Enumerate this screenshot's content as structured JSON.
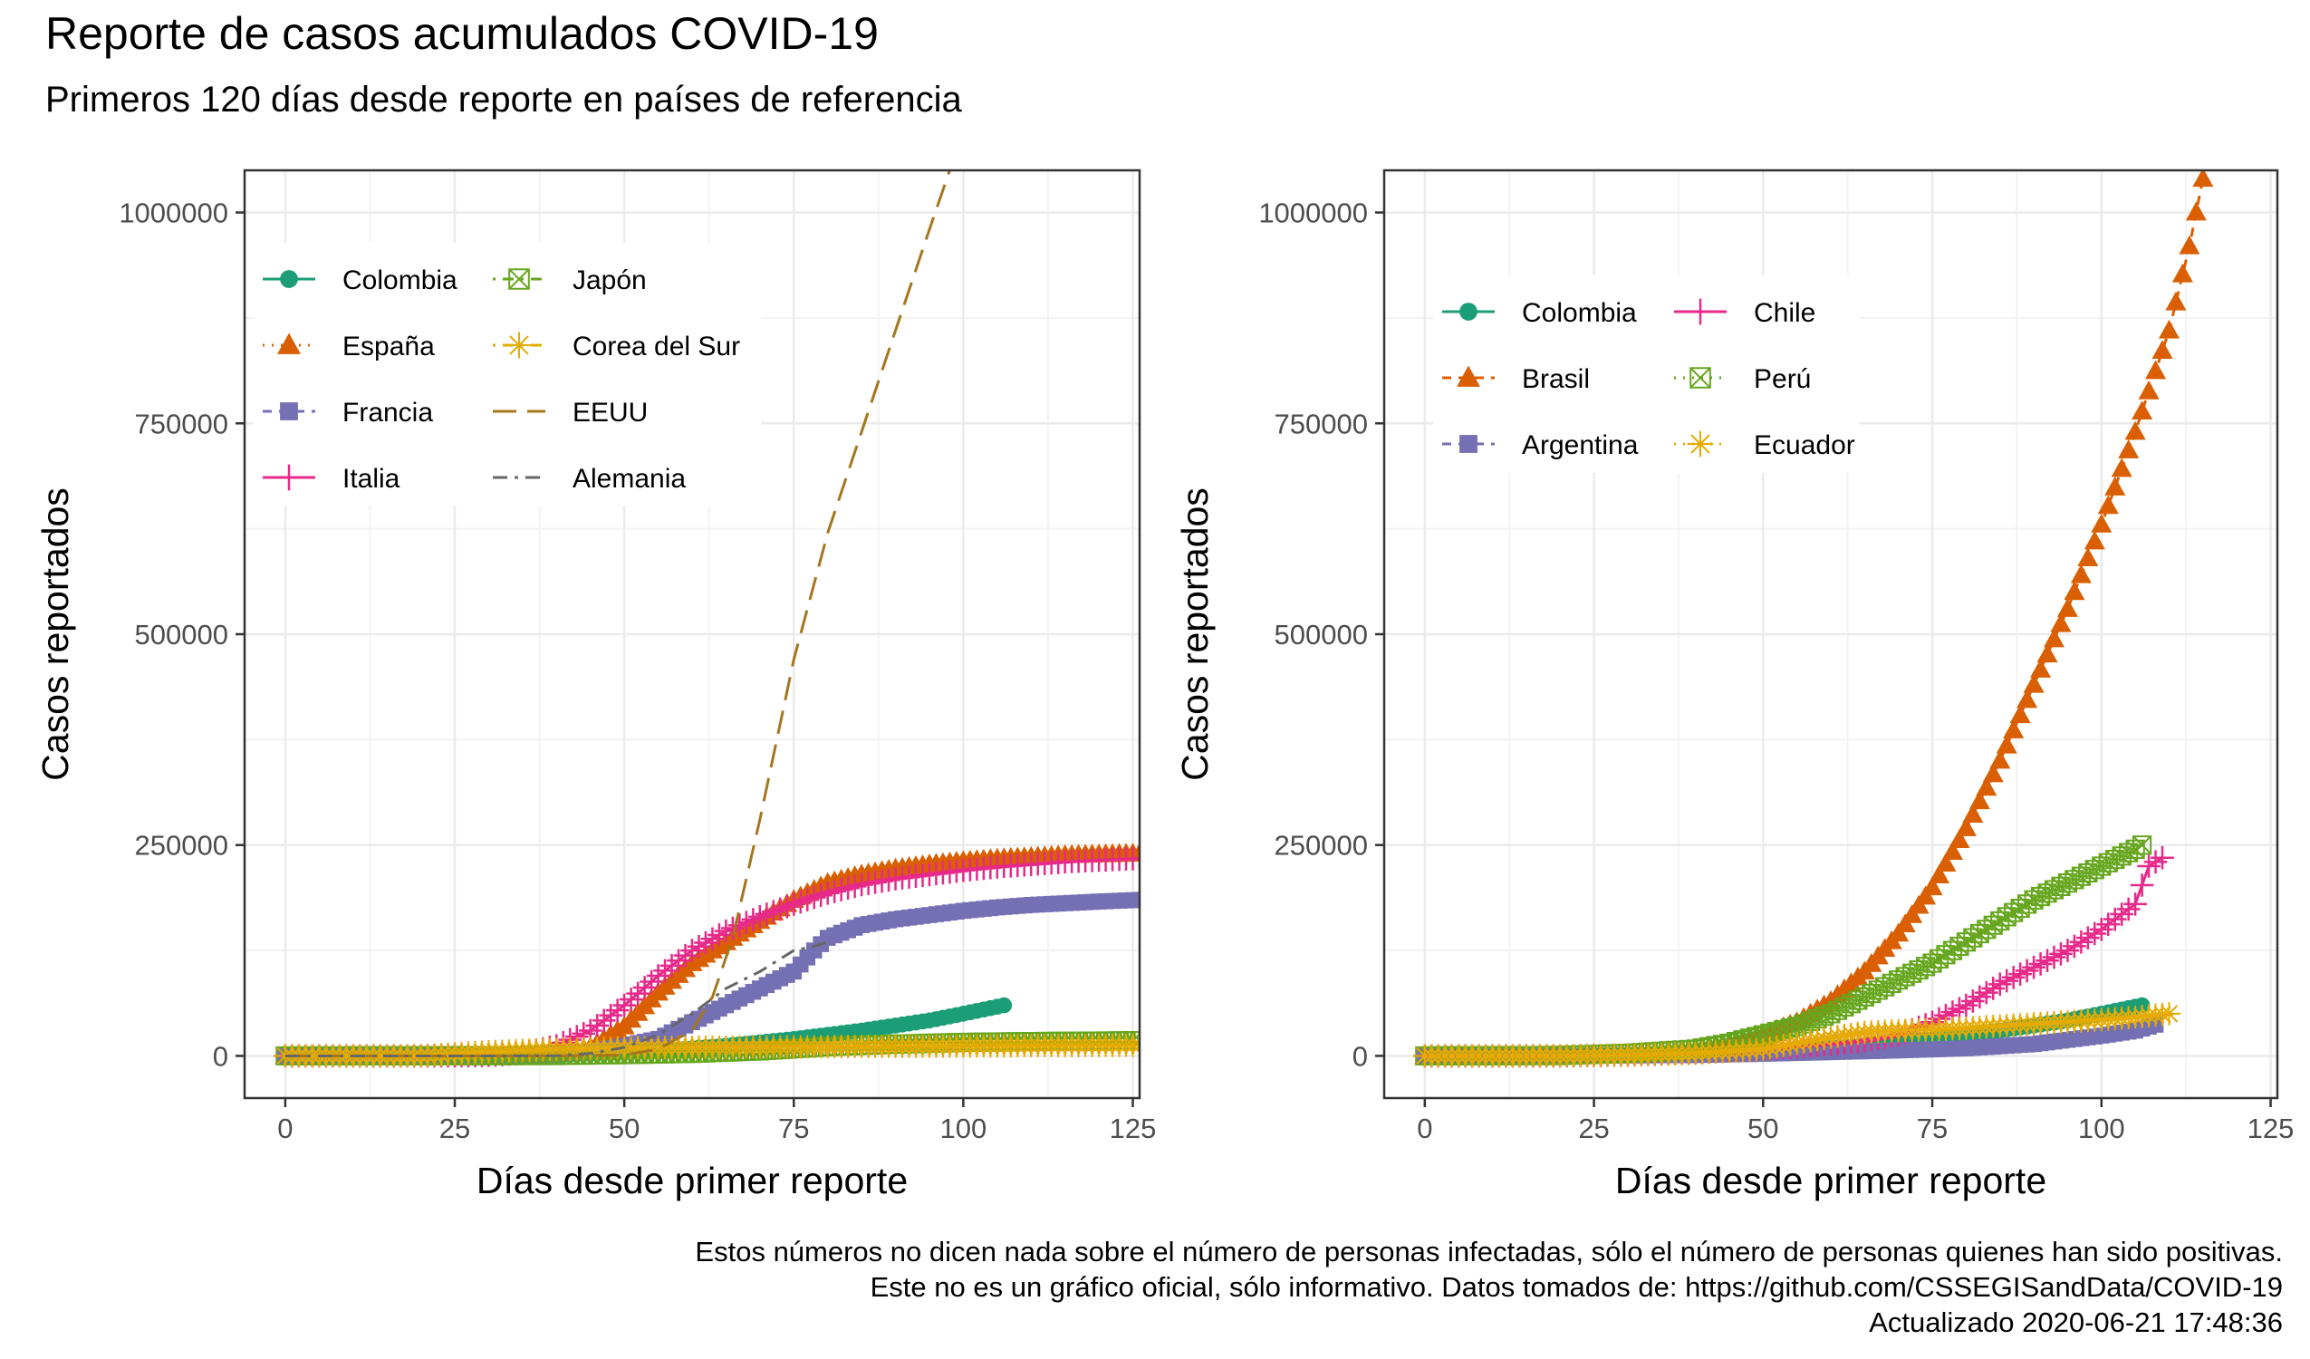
{
  "title": "Reporte de casos acumulados COVID-19",
  "subtitle": "Primeros 120 días desde reporte en países de referencia",
  "caption": [
    "Estos números no dicen nada sobre el número de personas infectadas, sólo el número de personas quienes han sido positivas.",
    "Este no es un gráfico oficial, sólo informativo. Datos tomados de: https://github.com/CSSEGISandData/COVID-19",
    "Actualizado 2020-06-21 17:48:36"
  ],
  "chart_data": [
    {
      "type": "line",
      "xlabel": "Días desde primer reporte",
      "ylabel": "Casos reportados",
      "xlim": [
        -6,
        126
      ],
      "ylim": [
        -50000,
        1050000
      ],
      "xticks": [
        0,
        25,
        50,
        75,
        100,
        125
      ],
      "yticks": [
        0,
        250000,
        500000,
        750000,
        1000000
      ],
      "grid": true,
      "legend_position": "top-left",
      "series": [
        {
          "name": "Colombia",
          "color": "#1B9E77",
          "marker": "circle",
          "dash": "solid",
          "x": [
            0,
            10,
            20,
            30,
            40,
            50,
            55,
            60,
            65,
            70,
            75,
            80,
            85,
            90,
            95,
            100,
            103,
            106
          ],
          "y": [
            0,
            0,
            100,
            500,
            1500,
            4000,
            6000,
            9000,
            12000,
            16000,
            20000,
            25000,
            30000,
            36000,
            42000,
            50000,
            55000,
            60000
          ]
        },
        {
          "name": "España",
          "color": "#D95F02",
          "marker": "triangle",
          "dash": "dotted",
          "x": [
            0,
            10,
            20,
            30,
            35,
            40,
            45,
            50,
            55,
            60,
            65,
            70,
            75,
            80,
            85,
            90,
            95,
            100,
            105,
            110,
            115,
            120,
            126
          ],
          "y": [
            0,
            0,
            0,
            0,
            500,
            2000,
            10000,
            35000,
            75000,
            110000,
            135000,
            160000,
            185000,
            205000,
            215000,
            222000,
            227000,
            231000,
            234000,
            236000,
            238000,
            239000,
            240000
          ]
        },
        {
          "name": "Francia",
          "color": "#7570B3",
          "marker": "square",
          "dash": "dashed",
          "x": [
            0,
            10,
            20,
            30,
            35,
            40,
            45,
            50,
            55,
            60,
            65,
            70,
            75,
            78,
            80,
            85,
            90,
            95,
            100,
            105,
            110,
            115,
            120,
            126
          ],
          "y": [
            0,
            0,
            0,
            0,
            200,
            1000,
            5000,
            12000,
            20000,
            40000,
            60000,
            80000,
            100000,
            125000,
            140000,
            155000,
            162000,
            167000,
            172000,
            176000,
            179000,
            181000,
            183000,
            185000
          ]
        },
        {
          "name": "Italia",
          "color": "#E7298A",
          "marker": "plus",
          "dash": "solid",
          "x": [
            0,
            10,
            20,
            25,
            30,
            35,
            40,
            45,
            50,
            55,
            60,
            65,
            70,
            75,
            80,
            85,
            90,
            95,
            100,
            105,
            110,
            115,
            120,
            126
          ],
          "y": [
            0,
            0,
            0,
            0,
            500,
            3000,
            12000,
            30000,
            60000,
            95000,
            125000,
            148000,
            165000,
            180000,
            193000,
            203000,
            210000,
            215000,
            220000,
            224000,
            227000,
            230000,
            232000,
            234000
          ]
        },
        {
          "name": "Japón",
          "color": "#66A61E",
          "marker": "square-x",
          "dash": "dotdash",
          "x": [
            0,
            20,
            40,
            50,
            60,
            70,
            80,
            90,
            100,
            110,
            126
          ],
          "y": [
            0,
            100,
            500,
            1500,
            3000,
            6000,
            11000,
            14000,
            16000,
            17000,
            18000
          ]
        },
        {
          "name": "Corea del Sur",
          "color": "#E6AB02",
          "marker": "asterisk",
          "dash": "dotdash",
          "x": [
            0,
            20,
            30,
            40,
            50,
            60,
            70,
            80,
            90,
            100,
            110,
            126
          ],
          "y": [
            0,
            30,
            5000,
            8000,
            9500,
            10300,
            10600,
            10900,
            11300,
            11700,
            12100,
            12500
          ]
        },
        {
          "name": "EEUU",
          "color": "#A6761D",
          "marker": "none",
          "dash": "longdash",
          "x": [
            0,
            20,
            40,
            50,
            55,
            60,
            63,
            66,
            70,
            75,
            80,
            85,
            90,
            95,
            98
          ],
          "y": [
            0,
            0,
            100,
            1000,
            8000,
            30000,
            70000,
            140000,
            280000,
            470000,
            620000,
            740000,
            860000,
            980000,
            1050000
          ]
        },
        {
          "name": "Alemania",
          "color": "#666666",
          "marker": "none",
          "dash": "dashdot",
          "x": [
            0,
            20,
            30,
            40,
            45,
            50,
            55,
            60,
            65,
            70,
            75,
            78,
            80
          ],
          "y": [
            0,
            0,
            0,
            300,
            3000,
            10000,
            25000,
            50000,
            80000,
            100000,
            125000,
            130000,
            135000
          ]
        }
      ]
    },
    {
      "type": "line",
      "xlabel": "Días desde primer reporte",
      "ylabel": "Casos reportados",
      "xlim": [
        -6,
        126
      ],
      "ylim": [
        -50000,
        1050000
      ],
      "xticks": [
        0,
        25,
        50,
        75,
        100,
        125
      ],
      "yticks": [
        0,
        250000,
        500000,
        750000,
        1000000
      ],
      "grid": true,
      "legend_position": "top-left",
      "series": [
        {
          "name": "Colombia",
          "color": "#1B9E77",
          "marker": "circle",
          "dash": "solid",
          "x": [
            0,
            10,
            20,
            30,
            40,
            50,
            55,
            60,
            65,
            70,
            75,
            80,
            85,
            90,
            95,
            100,
            103,
            106
          ],
          "y": [
            0,
            0,
            100,
            500,
            1500,
            4000,
            6000,
            9000,
            12000,
            16000,
            20000,
            25000,
            30000,
            36000,
            42000,
            50000,
            55000,
            60000
          ]
        },
        {
          "name": "Brasil",
          "color": "#D95F02",
          "marker": "triangle",
          "dash": "dashed",
          "x": [
            0,
            10,
            20,
            30,
            40,
            45,
            50,
            55,
            60,
            65,
            70,
            75,
            80,
            85,
            90,
            95,
            100,
            105,
            110,
            113,
            115
          ],
          "y": [
            0,
            0,
            0,
            2000,
            8000,
            14000,
            25000,
            40000,
            65000,
            100000,
            145000,
            200000,
            270000,
            350000,
            440000,
            530000,
            630000,
            740000,
            860000,
            960000,
            1040000
          ]
        },
        {
          "name": "Argentina",
          "color": "#7570B3",
          "marker": "square",
          "dash": "dashed",
          "x": [
            0,
            20,
            40,
            50,
            60,
            70,
            80,
            90,
            95,
            100,
            105,
            108
          ],
          "y": [
            0,
            0,
            1000,
            2500,
            4500,
            6500,
            9000,
            14000,
            19000,
            24000,
            30000,
            37000
          ]
        },
        {
          "name": "Chile",
          "color": "#E7298A",
          "marker": "plus",
          "dash": "solid",
          "x": [
            0,
            20,
            30,
            40,
            50,
            60,
            65,
            70,
            75,
            80,
            85,
            90,
            95,
            100,
            105,
            107,
            109
          ],
          "y": [
            0,
            0,
            1000,
            4000,
            8000,
            14000,
            18000,
            25000,
            40000,
            60000,
            85000,
            105000,
            125000,
            150000,
            180000,
            225000,
            235000
          ]
        },
        {
          "name": "Perú",
          "color": "#66A61E",
          "marker": "square-x",
          "dash": "dotted",
          "x": [
            0,
            20,
            30,
            40,
            45,
            50,
            55,
            60,
            65,
            70,
            75,
            80,
            85,
            90,
            95,
            100,
            105,
            106
          ],
          "y": [
            0,
            500,
            3000,
            8000,
            15000,
            25000,
            35000,
            50000,
            70000,
            90000,
            110000,
            135000,
            160000,
            185000,
            205000,
            225000,
            245000,
            250000
          ]
        },
        {
          "name": "Ecuador",
          "color": "#E6AB02",
          "marker": "asterisk",
          "dash": "dotted",
          "x": [
            0,
            20,
            30,
            40,
            50,
            55,
            60,
            65,
            70,
            75,
            80,
            90,
            100,
            105,
            110
          ],
          "y": [
            0,
            0,
            1000,
            3000,
            8000,
            15000,
            22000,
            28000,
            30000,
            31000,
            33000,
            38000,
            43000,
            46000,
            50000
          ]
        }
      ]
    }
  ]
}
